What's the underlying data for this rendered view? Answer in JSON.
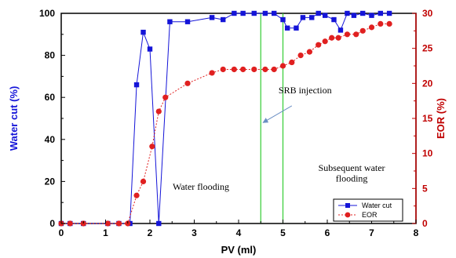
{
  "chart_data": {
    "type": "line",
    "xlabel": "PV (ml)",
    "ylabel_left": "Water cut (%)",
    "ylabel_right": "EOR (%)",
    "xlim": [
      0,
      8
    ],
    "ylim_left": [
      0,
      100
    ],
    "ylim_right": [
      0,
      30
    ],
    "x_ticks": [
      "0",
      "1",
      "2",
      "3",
      "4",
      "5",
      "6",
      "7",
      "8"
    ],
    "y_left_ticks": [
      "0",
      "20",
      "40",
      "60",
      "80",
      "100"
    ],
    "y_right_ticks": [
      "0",
      "5",
      "10",
      "15",
      "20",
      "25",
      "30"
    ],
    "grid": false,
    "legend_position": "bottom-right",
    "colors": {
      "water_cut": "#1414d8",
      "eor": "#e02020",
      "right_axis": "#c00000",
      "left_label": "#1414d8",
      "vlines": "#33cc33",
      "arrow": "#6b8fc4"
    },
    "vertical_lines_x": [
      4.5,
      5.0
    ],
    "series": [
      {
        "name": "Water cut",
        "axis": "left",
        "marker": "square",
        "x": [
          0,
          0.2,
          0.5,
          1.05,
          1.3,
          1.55,
          1.7,
          1.85,
          2.0,
          2.2,
          2.45,
          2.85,
          3.4,
          3.65,
          3.9,
          4.1,
          4.35,
          4.6,
          4.8,
          5.0,
          5.1,
          5.3,
          5.45,
          5.65,
          5.8,
          5.95,
          6.15,
          6.3,
          6.45,
          6.6,
          6.8,
          7.0,
          7.2,
          7.4
        ],
        "values": [
          0,
          0,
          0,
          0,
          0,
          0,
          66,
          91,
          83,
          0,
          96,
          96,
          98,
          97,
          100,
          100,
          100,
          100,
          100,
          97,
          93,
          93,
          98,
          98,
          100,
          99,
          97,
          92,
          100,
          99,
          100,
          99,
          100,
          100
        ]
      },
      {
        "name": "EOR",
        "axis": "right",
        "marker": "circle",
        "x": [
          0,
          0.2,
          0.5,
          1.05,
          1.3,
          1.5,
          1.7,
          1.85,
          2.05,
          2.2,
          2.35,
          2.85,
          3.4,
          3.65,
          3.9,
          4.1,
          4.35,
          4.6,
          4.8,
          5.0,
          5.2,
          5.4,
          5.6,
          5.8,
          5.95,
          6.1,
          6.25,
          6.45,
          6.65,
          6.8,
          7.0,
          7.2,
          7.4
        ],
        "values": [
          0,
          0,
          0,
          0,
          0,
          0,
          4,
          6,
          11,
          16,
          18,
          20,
          21.5,
          22,
          22,
          22,
          22,
          22,
          22,
          22.5,
          23,
          24,
          24.5,
          25.5,
          26,
          26.5,
          26.5,
          27,
          27,
          27.5,
          28,
          28.5,
          28.5
        ]
      }
    ],
    "annotations": [
      {
        "text": "SRB injection",
        "x": 5.5,
        "y_left": 62
      },
      {
        "text": "Water flooding",
        "x": 3.15,
        "y_left": 16
      },
      {
        "text": "Subsequent water",
        "x": 6.55,
        "y_left": 25
      },
      {
        "text": "flooding",
        "x": 6.55,
        "y_left": 20
      }
    ]
  }
}
